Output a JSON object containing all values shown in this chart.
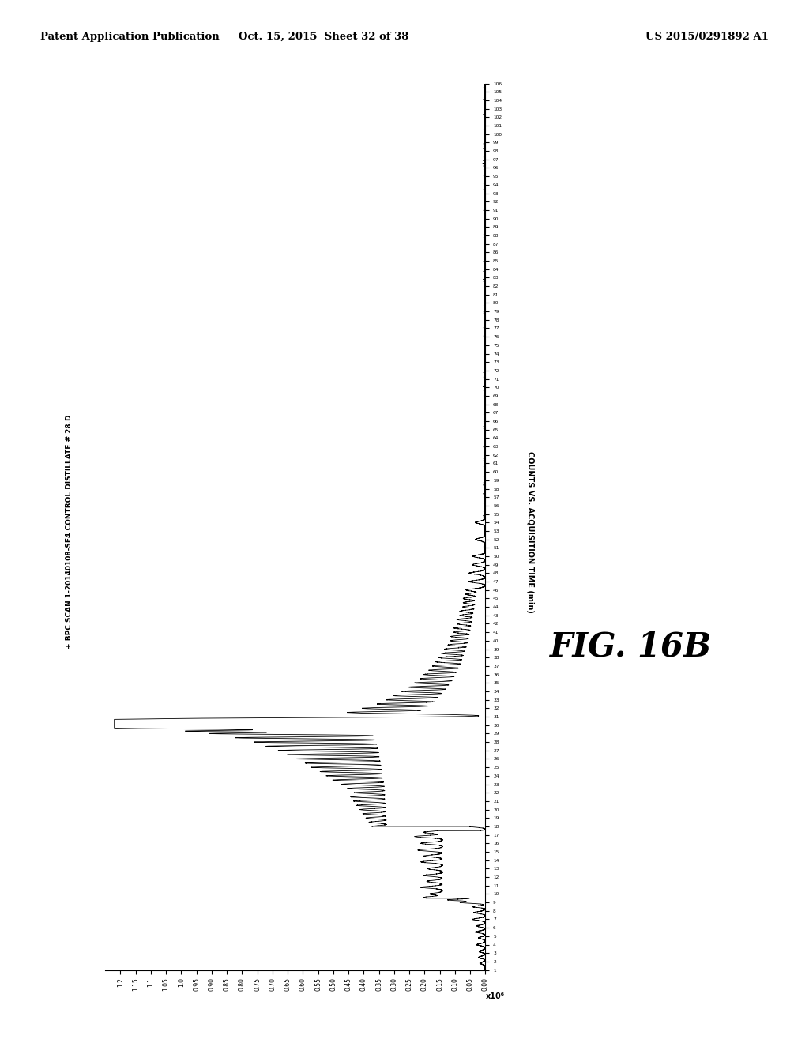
{
  "title_header_left": "Patent Application Publication",
  "title_header_mid": "Oct. 15, 2015  Sheet 32 of 38",
  "title_header_right": "US 2015/0291892 A1",
  "trace_label": "+ BPC SCAN 1-20140108-SF4 CONTROL DISTILLATE # 28.D",
  "xlabel_label": "COUNTS VS. ACQUISITION TIME (min)",
  "fig_label": "FIG. 16B",
  "scale_label": "x10⁶",
  "background_color": "#ffffff",
  "line_color": "#000000",
  "xlim_max": 1.25,
  "time_max": 106,
  "time_min": 1
}
